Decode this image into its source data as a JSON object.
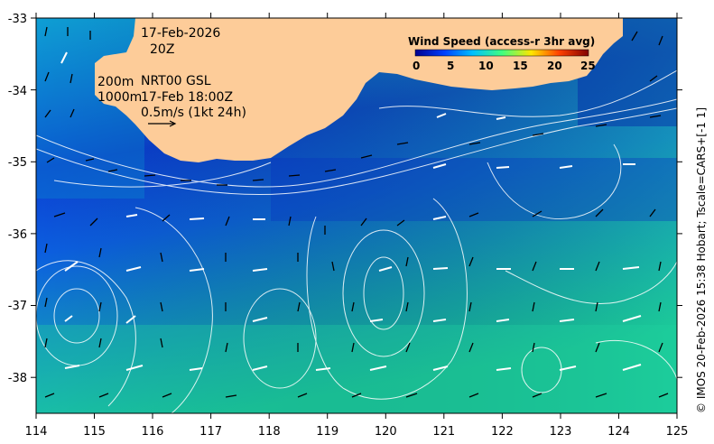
{
  "map": {
    "date": "17-Feb-2026",
    "time": "20Z",
    "depth_line_1": "200m",
    "depth_line_2": "1000m",
    "source": "NRT00 GSL",
    "valid_time": "17-Feb 18:00Z",
    "scale_label": "0.5m/s (1kt 24h)",
    "credit": "© IMOS 20-Feb-2026 15:38 Hobart; Tscale=CARS+[-1 1]",
    "lon_ticks": [
      "114",
      "115",
      "116",
      "117",
      "118",
      "119",
      "120",
      "121",
      "122",
      "123",
      "124",
      "125"
    ],
    "lat_ticks": [
      "-33",
      "-34",
      "-35",
      "-36",
      "-37",
      "-38"
    ],
    "land_color": "#fdcc99",
    "colorbar": {
      "title": "Wind Speed (access-r 3hr avg)",
      "ticks": [
        "0",
        "5",
        "10",
        "15",
        "20",
        "25"
      ],
      "colors": [
        "#00008f",
        "#0040ff",
        "#00bfff",
        "#40ff80",
        "#ffe600",
        "#ff4000",
        "#800000"
      ]
    }
  }
}
